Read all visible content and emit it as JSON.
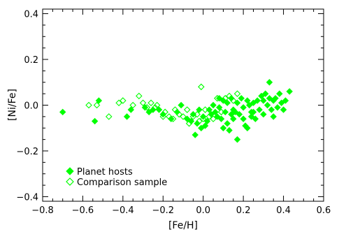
{
  "chart_data": {
    "type": "scatter",
    "title": "",
    "xlabel": "[Fe/H]",
    "ylabel": "[Ni/Fe]",
    "xlim": [
      -0.8,
      0.6
    ],
    "ylim": [
      -0.42,
      0.42
    ],
    "xticks": [
      -0.8,
      -0.6,
      -0.4,
      -0.2,
      0.0,
      0.2,
      0.4,
      0.6
    ],
    "xtick_labels": [
      "−0.8",
      "−0.6",
      "−0.4",
      "−0.2",
      "0.0",
      "0.2",
      "0.4",
      "0.6"
    ],
    "yticks": [
      -0.4,
      -0.2,
      0.0,
      0.2,
      0.4
    ],
    "ytick_labels": [
      "−0.4",
      "−0.2",
      "0.0",
      "0.2",
      "0.4"
    ],
    "grid": false,
    "legend_position": "bottom-left",
    "series": [
      {
        "name": "Planet hosts",
        "marker": "filled-diamond",
        "color": "#00ff00",
        "points": [
          [
            -0.7,
            -0.03
          ],
          [
            -0.54,
            -0.07
          ],
          [
            -0.52,
            0.02
          ],
          [
            -0.38,
            -0.05
          ],
          [
            -0.36,
            -0.02
          ],
          [
            -0.29,
            -0.01
          ],
          [
            -0.27,
            -0.03
          ],
          [
            -0.25,
            -0.02
          ],
          [
            -0.22,
            -0.02
          ],
          [
            -0.2,
            -0.04
          ],
          [
            -0.16,
            -0.06
          ],
          [
            -0.13,
            -0.03
          ],
          [
            -0.11,
            0.0
          ],
          [
            -0.08,
            -0.06
          ],
          [
            -0.06,
            -0.07
          ],
          [
            -0.05,
            -0.04
          ],
          [
            -0.04,
            -0.13
          ],
          [
            -0.03,
            -0.08
          ],
          [
            -0.02,
            -0.02
          ],
          [
            -0.01,
            -0.1
          ],
          [
            0.0,
            -0.05
          ],
          [
            0.01,
            -0.09
          ],
          [
            0.02,
            -0.07
          ],
          [
            0.03,
            -0.02
          ],
          [
            0.04,
            -0.04
          ],
          [
            0.05,
            0.0
          ],
          [
            0.06,
            -0.03
          ],
          [
            0.07,
            -0.05
          ],
          [
            0.08,
            -0.01
          ],
          [
            0.08,
            0.03
          ],
          [
            0.09,
            -0.06
          ],
          [
            0.1,
            0.02
          ],
          [
            0.1,
            -0.1
          ],
          [
            0.11,
            -0.03
          ],
          [
            0.12,
            0.01
          ],
          [
            0.12,
            -0.08
          ],
          [
            0.13,
            -0.11
          ],
          [
            0.14,
            -0.04
          ],
          [
            0.14,
            0.03
          ],
          [
            0.15,
            -0.02
          ],
          [
            0.15,
            -0.06
          ],
          [
            0.16,
            -0.03
          ],
          [
            0.17,
            0.01
          ],
          [
            0.17,
            -0.15
          ],
          [
            0.18,
            -0.04
          ],
          [
            0.19,
            0.03
          ],
          [
            0.2,
            -0.06
          ],
          [
            0.2,
            -0.01
          ],
          [
            0.21,
            -0.09
          ],
          [
            0.22,
            0.02
          ],
          [
            0.22,
            -0.1
          ],
          [
            0.23,
            0.0
          ],
          [
            0.24,
            -0.05
          ],
          [
            0.24,
            -0.03
          ],
          [
            0.25,
            0.01
          ],
          [
            0.25,
            -0.03
          ],
          [
            0.26,
            -0.06
          ],
          [
            0.27,
            0.02
          ],
          [
            0.28,
            -0.02
          ],
          [
            0.29,
            0.04
          ],
          [
            0.3,
            -0.04
          ],
          [
            0.3,
            0.02
          ],
          [
            0.31,
            0.05
          ],
          [
            0.32,
            0.0
          ],
          [
            0.33,
            0.03
          ],
          [
            0.33,
            0.1
          ],
          [
            0.34,
            -0.02
          ],
          [
            0.35,
            0.02
          ],
          [
            0.35,
            -0.05
          ],
          [
            0.36,
            0.03
          ],
          [
            0.37,
            -0.01
          ],
          [
            0.38,
            0.05
          ],
          [
            0.39,
            0.01
          ],
          [
            0.4,
            -0.02
          ],
          [
            0.41,
            0.02
          ],
          [
            0.43,
            0.06
          ]
        ]
      },
      {
        "name": "Comparison sample",
        "marker": "open-diamond",
        "color": "#00ff00",
        "points": [
          [
            -0.57,
            0.0
          ],
          [
            -0.53,
            0.0
          ],
          [
            -0.47,
            -0.05
          ],
          [
            -0.42,
            0.01
          ],
          [
            -0.4,
            0.02
          ],
          [
            -0.35,
            0.0
          ],
          [
            -0.32,
            0.04
          ],
          [
            -0.3,
            0.01
          ],
          [
            -0.28,
            -0.01
          ],
          [
            -0.26,
            0.01
          ],
          [
            -0.24,
            -0.01
          ],
          [
            -0.23,
            0.0
          ],
          [
            -0.2,
            -0.05
          ],
          [
            -0.19,
            -0.03
          ],
          [
            -0.17,
            -0.05
          ],
          [
            -0.15,
            -0.06
          ],
          [
            -0.14,
            -0.02
          ],
          [
            -0.12,
            -0.04
          ],
          [
            -0.1,
            -0.05
          ],
          [
            -0.08,
            -0.02
          ],
          [
            -0.07,
            -0.08
          ],
          [
            -0.05,
            -0.05
          ],
          [
            -0.03,
            -0.04
          ],
          [
            -0.02,
            -0.07
          ],
          [
            -0.01,
            0.08
          ],
          [
            0.0,
            -0.06
          ],
          [
            0.01,
            -0.02
          ],
          [
            0.03,
            -0.05
          ],
          [
            0.05,
            -0.06
          ],
          [
            0.07,
            0.03
          ],
          [
            0.09,
            -0.03
          ],
          [
            0.11,
            0.03
          ],
          [
            0.13,
            0.04
          ],
          [
            0.15,
            0.02
          ],
          [
            0.17,
            0.05
          ]
        ]
      }
    ]
  }
}
